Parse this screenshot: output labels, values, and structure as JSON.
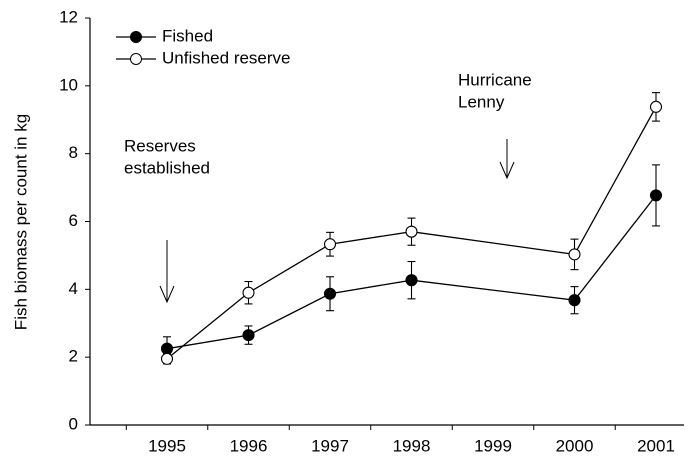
{
  "chart_data": {
    "type": "line",
    "y_label": "Fish biomass per count in kg",
    "x": [
      1995,
      1996,
      1997,
      1998,
      2000,
      2001
    ],
    "xlim": [
      1994.055,
      2001
    ],
    "xticks": [
      1995,
      1996,
      1997,
      1998,
      1999,
      2000,
      2001
    ],
    "ylim": [
      0,
      12
    ],
    "yticks": [
      0,
      2,
      4,
      6,
      8,
      10,
      12
    ],
    "legend": "upper left",
    "series": [
      {
        "name": "Fished",
        "color": "#000000",
        "marker": "filled",
        "values": [
          2.25,
          2.65,
          3.87,
          4.27,
          3.68,
          6.77
        ],
        "errors": [
          0.35,
          0.27,
          0.5,
          0.55,
          0.4,
          0.9
        ]
      },
      {
        "name": "Unfished reserve",
        "color": "#000000",
        "marker": "open",
        "values": [
          1.95,
          3.9,
          5.33,
          5.7,
          5.03,
          9.38
        ],
        "errors": [
          0.15,
          0.33,
          0.35,
          0.4,
          0.45,
          0.42
        ]
      }
    ],
    "annotations": [
      {
        "lines": [
          "Reserves",
          "established"
        ]
      },
      {
        "lines": [
          "Hurricane",
          "Lenny"
        ]
      }
    ]
  }
}
